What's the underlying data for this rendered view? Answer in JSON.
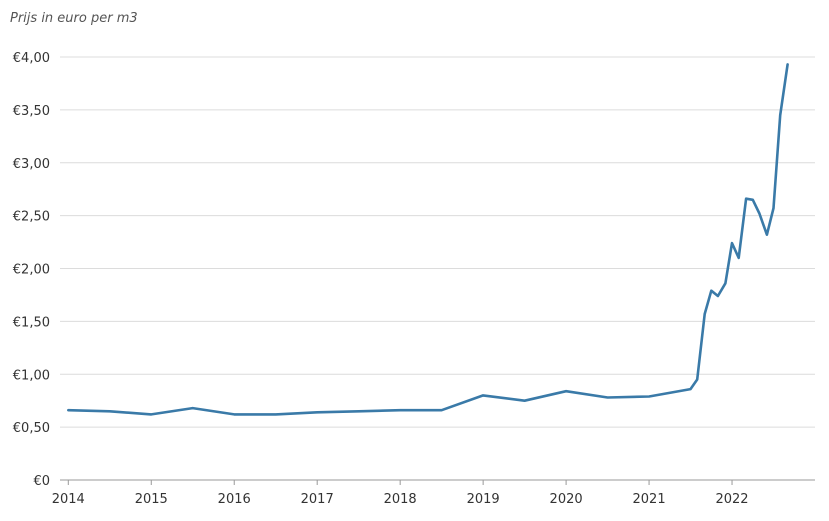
{
  "chart_data": {
    "type": "line",
    "title": "",
    "ylabel": "Prijs in euro per m3",
    "xlabel": "",
    "ylim": [
      0,
      4.0
    ],
    "xlim": [
      2013.9,
      2023.0
    ],
    "y_ticks": [
      0,
      0.5,
      1.0,
      1.5,
      2.0,
      2.5,
      3.0,
      3.5,
      4.0
    ],
    "y_tick_labels": [
      "€0",
      "€0,50",
      "€1,00",
      "€1,50",
      "€2,00",
      "€2,50",
      "€3,00",
      "€3,50",
      "€4,00"
    ],
    "x_ticks": [
      2014,
      2015,
      2016,
      2017,
      2018,
      2019,
      2020,
      2021,
      2022
    ],
    "x_tick_labels": [
      "2014",
      "2015",
      "2016",
      "2017",
      "2018",
      "2019",
      "2020",
      "2021",
      "2022"
    ],
    "grid": true,
    "series": [
      {
        "color": "#3a7aa8",
        "x": [
          2014.0,
          2014.5,
          2015.0,
          2015.5,
          2016.0,
          2016.5,
          2017.0,
          2017.5,
          2018.0,
          2018.5,
          2019.0,
          2019.5,
          2020.0,
          2020.5,
          2021.0,
          2021.5,
          2021.58,
          2021.67,
          2021.75,
          2021.83,
          2021.92,
          2022.0,
          2022.08,
          2022.17,
          2022.25,
          2022.33,
          2022.42,
          2022.5,
          2022.58,
          2022.67
        ],
        "y": [
          0.66,
          0.65,
          0.62,
          0.68,
          0.62,
          0.62,
          0.64,
          0.65,
          0.66,
          0.66,
          0.8,
          0.75,
          0.84,
          0.78,
          0.79,
          0.86,
          0.95,
          1.57,
          1.79,
          1.74,
          1.86,
          2.24,
          2.1,
          2.66,
          2.65,
          2.52,
          2.32,
          2.57,
          3.45,
          3.93
        ]
      }
    ]
  }
}
